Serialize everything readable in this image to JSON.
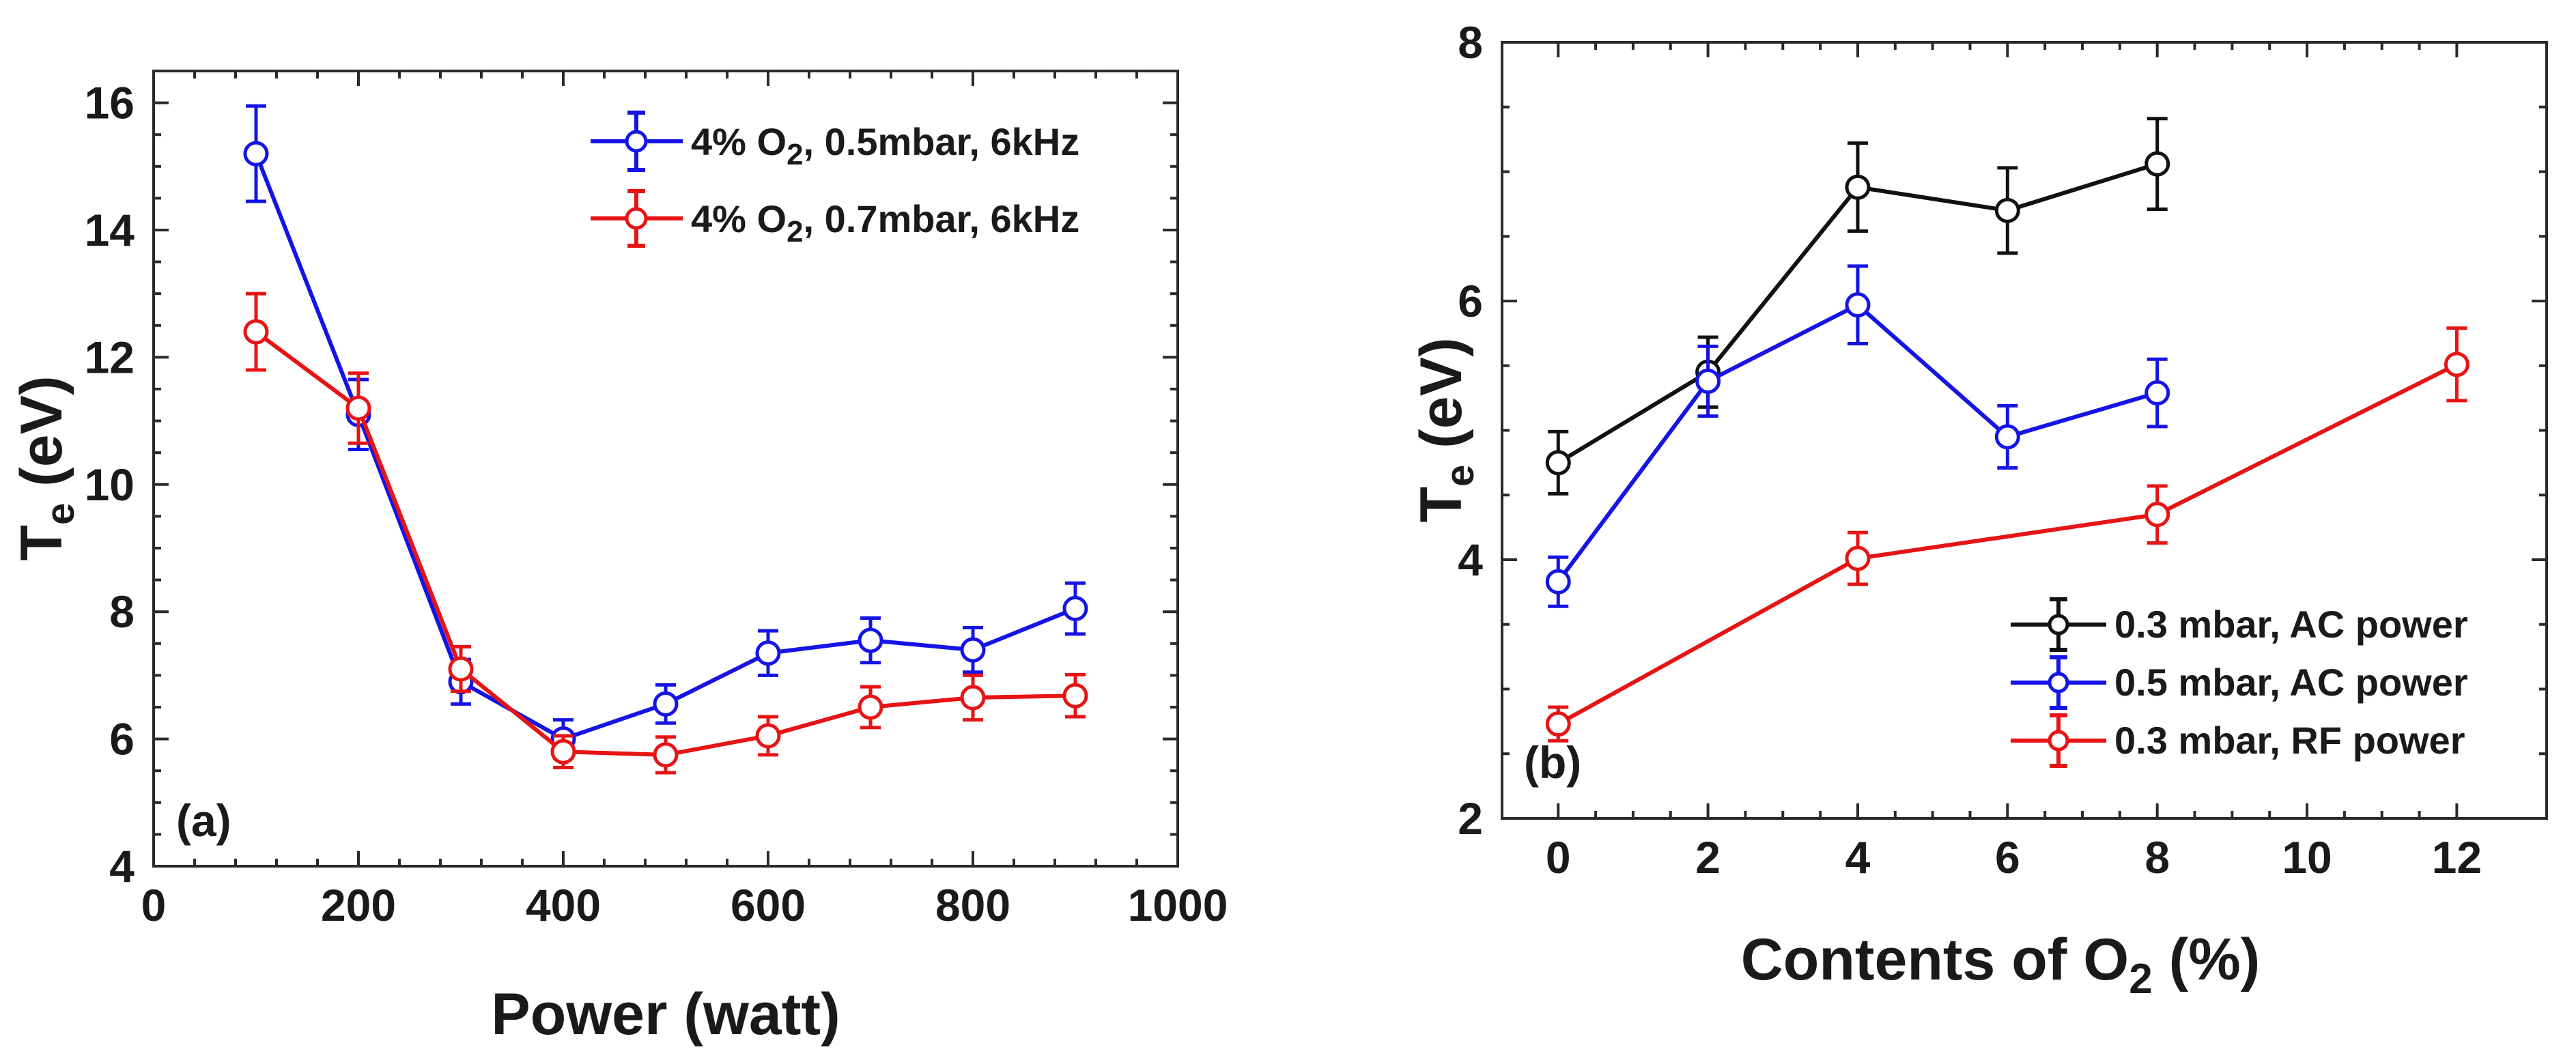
{
  "chart_data": [
    {
      "type": "line",
      "panel_label": "(a)",
      "xlabel": "Power (watt)",
      "ylabel_main": "T",
      "ylabel_sub": "e",
      "ylabel_unit": " (eV)",
      "xlim": [
        0,
        1000
      ],
      "ylim": [
        4,
        16.5
      ],
      "xticks": [
        0,
        200,
        400,
        600,
        800,
        1000
      ],
      "yticks": [
        4,
        6,
        8,
        10,
        12,
        14,
        16
      ],
      "xtick_labels": [
        "0",
        "200",
        "400",
        "600",
        "800",
        "1000"
      ],
      "ytick_labels": [
        "4",
        "6",
        "8",
        "10",
        "12",
        "14",
        "16"
      ],
      "legend_position": "top-right",
      "series": [
        {
          "name_pre": "4% O",
          "name_sub": "2",
          "name_post": ", 0.5mbar, 6kHz",
          "color": "#1414e6",
          "x": [
            100,
            200,
            300,
            400,
            500,
            600,
            700,
            800,
            900
          ],
          "y": [
            15.2,
            11.1,
            6.9,
            6.0,
            6.55,
            7.35,
            7.55,
            7.4,
            8.05
          ],
          "err": [
            0.75,
            0.55,
            0.35,
            0.3,
            0.3,
            0.35,
            0.35,
            0.35,
            0.4
          ]
        },
        {
          "name_pre": "4% O",
          "name_sub": "2",
          "name_post": ", 0.7mbar, 6kHz",
          "color": "#e61414",
          "x": [
            100,
            200,
            300,
            400,
            500,
            600,
            700,
            800,
            900
          ],
          "y": [
            12.4,
            11.2,
            7.1,
            5.8,
            5.75,
            6.05,
            6.5,
            6.65,
            6.68
          ],
          "err": [
            0.6,
            0.55,
            0.35,
            0.25,
            0.28,
            0.3,
            0.32,
            0.35,
            0.33
          ]
        }
      ]
    },
    {
      "type": "line",
      "panel_label": "(b)",
      "xlabel_pre": "Contents of O",
      "xlabel_sub": "2",
      "xlabel_post": " (%)",
      "ylabel_main": "T",
      "ylabel_sub": "e",
      "ylabel_unit": " (eV)",
      "xlim": [
        -0.75,
        13.2
      ],
      "ylim": [
        2,
        8
      ],
      "xticks": [
        0,
        2,
        4,
        6,
        8,
        10,
        12
      ],
      "yticks": [
        2,
        4,
        6,
        8
      ],
      "xtick_labels": [
        "0",
        "2",
        "4",
        "6",
        "8",
        "10",
        "12"
      ],
      "ytick_labels": [
        "2",
        "4",
        "6",
        "8"
      ],
      "legend_position": "bottom-right",
      "series": [
        {
          "name": "0.3 mbar, AC power",
          "color": "#111111",
          "x": [
            0,
            2,
            4,
            6,
            8
          ],
          "y": [
            4.75,
            5.45,
            6.88,
            6.7,
            7.06
          ],
          "err": [
            0.24,
            0.27,
            0.34,
            0.33,
            0.35
          ]
        },
        {
          "name": "0.5 mbar, AC power",
          "color": "#1414e6",
          "x": [
            0,
            2,
            4,
            6,
            8
          ],
          "y": [
            3.83,
            5.38,
            5.97,
            4.95,
            5.29
          ],
          "err": [
            0.19,
            0.27,
            0.3,
            0.24,
            0.26
          ]
        },
        {
          "name": "0.3 mbar, RF power",
          "color": "#e61414",
          "x": [
            0,
            4,
            8,
            12
          ],
          "y": [
            2.73,
            4.01,
            4.35,
            5.51
          ],
          "err": [
            0.13,
            0.2,
            0.22,
            0.28
          ]
        }
      ]
    }
  ]
}
